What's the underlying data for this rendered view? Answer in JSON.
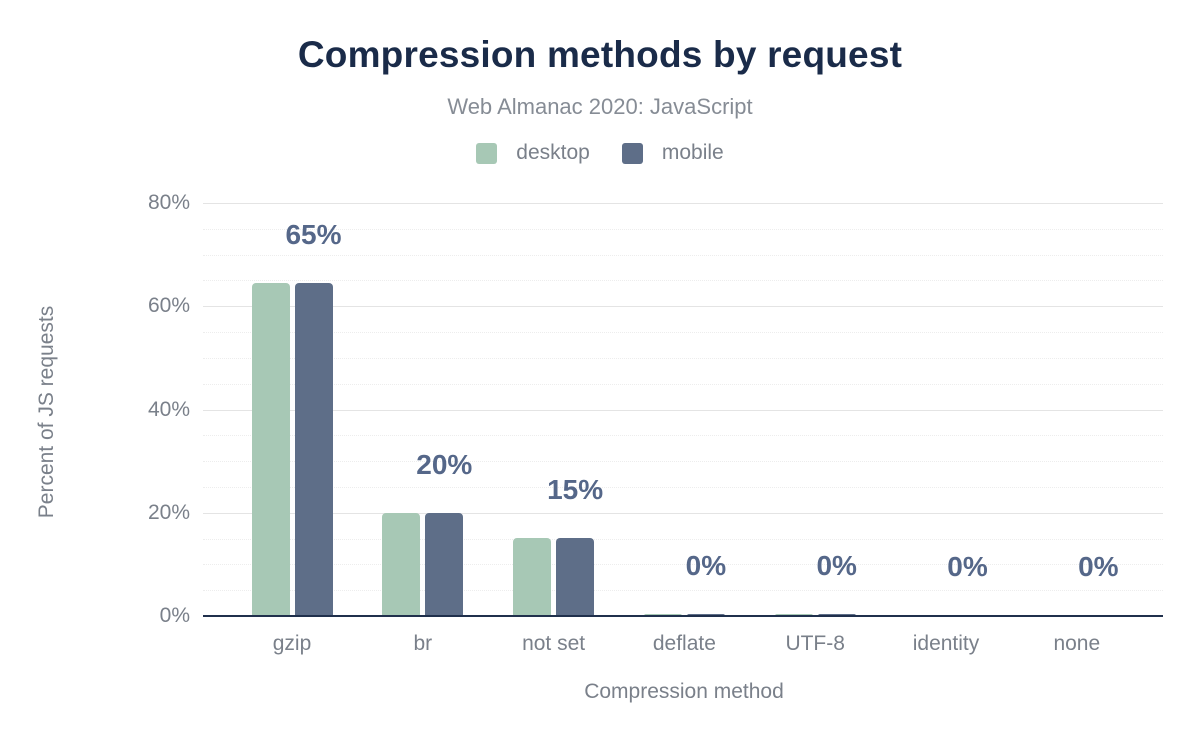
{
  "chart_data": {
    "type": "bar",
    "title": "Compression methods by request",
    "subtitle": "Web Almanac 2020: JavaScript",
    "xlabel": "Compression method",
    "ylabel": "Percent of JS requests",
    "categories": [
      "gzip",
      "br",
      "not set",
      "deflate",
      "UTF-8",
      "identity",
      "none"
    ],
    "series": [
      {
        "name": "desktop",
        "color": "#a7c8b5",
        "values": [
          64.5,
          19.9,
          15.1,
          0.4,
          0.3,
          0.25,
          0.2
        ]
      },
      {
        "name": "mobile",
        "color": "#5e6e88",
        "values": [
          64.5,
          19.9,
          15.1,
          0.4,
          0.3,
          0.25,
          0.2
        ]
      }
    ],
    "data_labels": [
      "65%",
      "20%",
      "15%",
      "0%",
      "0%",
      "0%",
      "0%"
    ],
    "yticks": [
      "0%",
      "20%",
      "40%",
      "60%",
      "80%"
    ],
    "ylim": [
      0,
      80
    ],
    "grid": {
      "major_every": 20,
      "minor_every": 5,
      "visible": true
    },
    "legend_position": "top",
    "colors": {
      "title": "#1a2b49",
      "subtitle_text": "#868c95",
      "axis_text": "#7a808a",
      "data_label": "#556789",
      "baseline": "#20304c",
      "grid_major": "#e4e4e4",
      "grid_minor": "#ededed",
      "background": "#ffffff"
    }
  }
}
